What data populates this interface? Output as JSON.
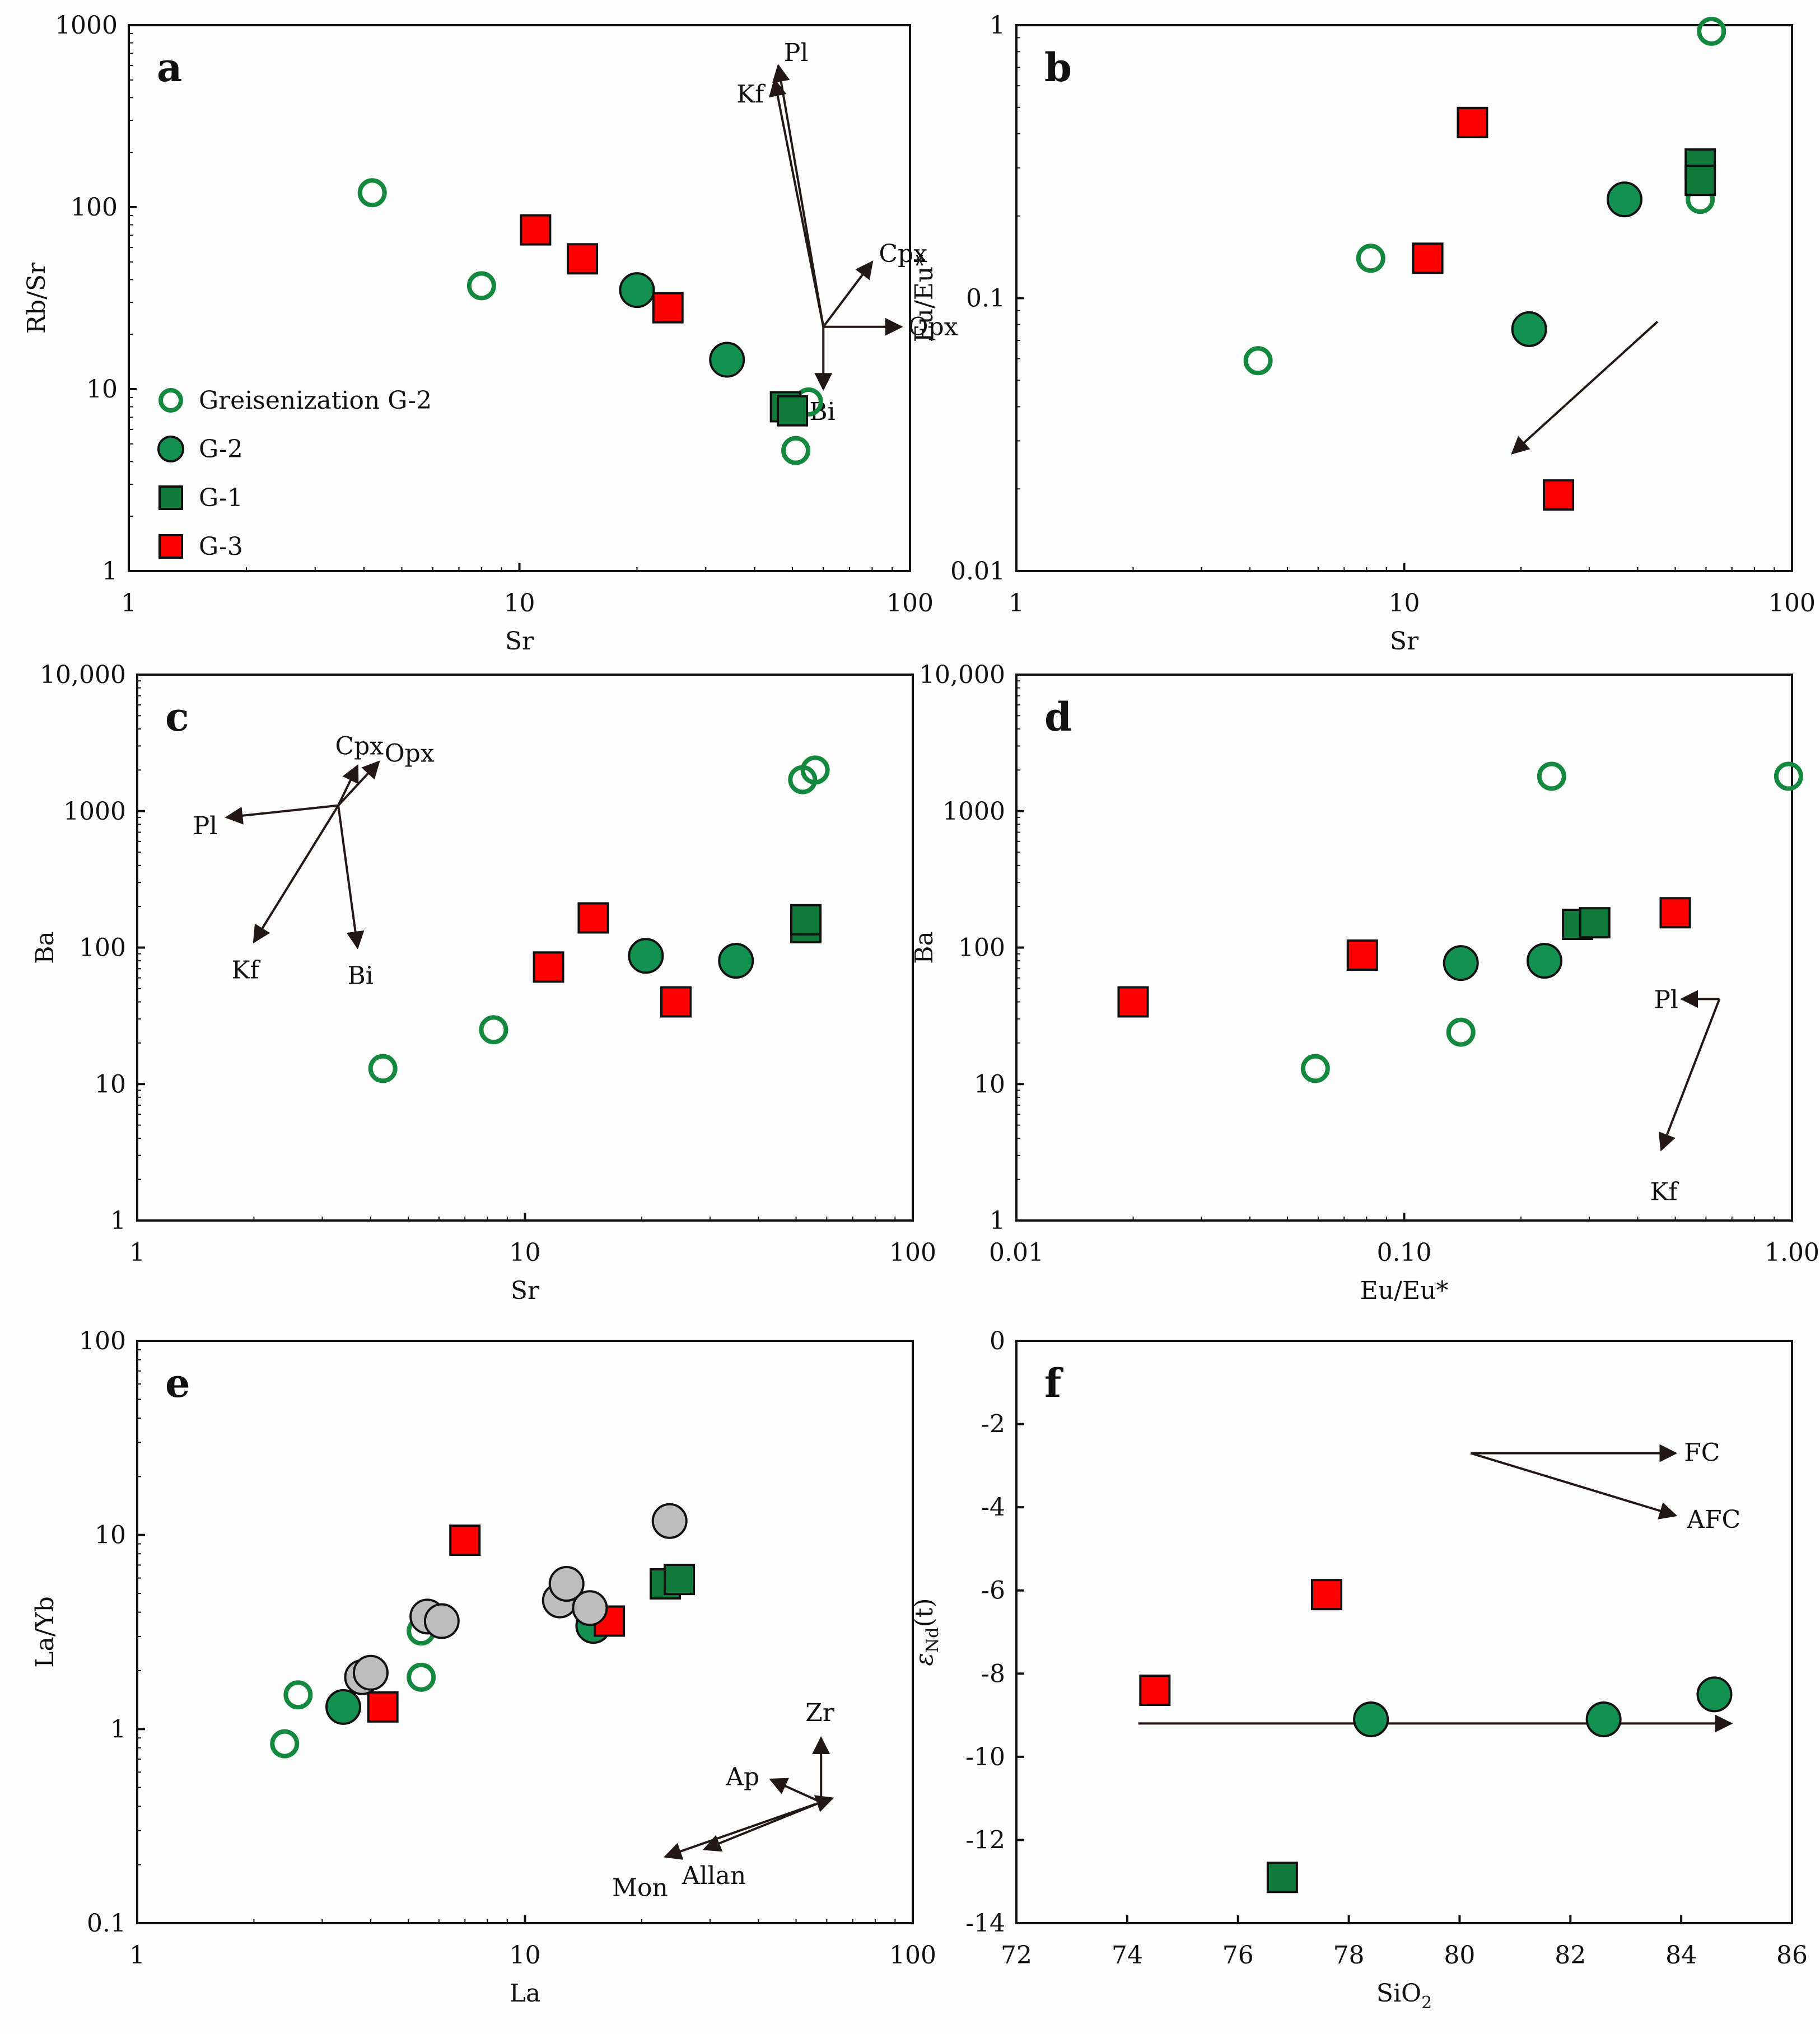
{
  "colors": {
    "g1": "#0f7a3a",
    "g2": "#129150",
    "greisen_stroke": "#15883f",
    "g3": "#ff0000",
    "gray": "#bdbdbd",
    "axis": "#111111",
    "arrow": "#231815"
  },
  "legend": [
    {
      "label": "Greisenization G-2",
      "marker": "open-circle"
    },
    {
      "label": "G-2",
      "marker": "circle-g2"
    },
    {
      "label": "G-1",
      "marker": "square-g1"
    },
    {
      "label": "G-3",
      "marker": "square-g3"
    }
  ],
  "chart_data": [
    {
      "id": "a",
      "type": "scatter",
      "panel_label": "a",
      "xscale": "log",
      "yscale": "log",
      "xlim": [
        1,
        100
      ],
      "ylim": [
        1,
        1000
      ],
      "xticks": [
        {
          "v": 1,
          "t": "1"
        },
        {
          "v": 10,
          "t": "10"
        },
        {
          "v": 100,
          "t": "100"
        }
      ],
      "yticks": [
        {
          "v": 1,
          "t": "1"
        },
        {
          "v": 10,
          "t": "10"
        },
        {
          "v": 100,
          "t": "100"
        },
        {
          "v": 1000,
          "t": "1000"
        }
      ],
      "xlabel": "Sr",
      "ylabel": "Rb/Sr",
      "series": [
        {
          "name": "Greisenization G-2",
          "marker": "open-circle",
          "x": [
            4.2,
            8.0,
            55,
            51
          ],
          "y": [
            120,
            37,
            8.5,
            4.6
          ]
        },
        {
          "name": "G-2",
          "marker": "circle-g2",
          "x": [
            20,
            34
          ],
          "y": [
            35,
            14.5
          ]
        },
        {
          "name": "G-1",
          "marker": "square-g1",
          "x": [
            48,
            50
          ],
          "y": [
            8.0,
            7.6
          ]
        },
        {
          "name": "G-3",
          "marker": "square-g3",
          "x": [
            11,
            14.5,
            24
          ],
          "y": [
            75,
            52,
            28
          ]
        }
      ],
      "vectors": {
        "origin": [
          60,
          22
        ],
        "arrows": [
          {
            "label": "Pl",
            "to": [
              46,
              600
            ]
          },
          {
            "label": "Kf",
            "to": [
              45,
              500
            ]
          },
          {
            "label": "Cpx",
            "to": [
              80,
              50
            ]
          },
          {
            "label": "Opx",
            "to": [
              95,
              22
            ]
          },
          {
            "label": "Bi",
            "to": [
              60,
              10
            ]
          }
        ]
      }
    },
    {
      "id": "b",
      "type": "scatter",
      "panel_label": "b",
      "xscale": "log",
      "yscale": "log",
      "xlim": [
        1,
        100
      ],
      "ylim": [
        0.01,
        1
      ],
      "xticks": [
        {
          "v": 1,
          "t": "1"
        },
        {
          "v": 10,
          "t": "10"
        },
        {
          "v": 100,
          "t": "100"
        }
      ],
      "yticks": [
        {
          "v": 0.01,
          "t": "0.01"
        },
        {
          "v": 0.1,
          "t": "0.1"
        },
        {
          "v": 1,
          "t": "1"
        }
      ],
      "xlabel": "Sr",
      "ylabel": "Eu/Eu*",
      "series": [
        {
          "name": "Greisenization G-2",
          "marker": "open-circle",
          "x": [
            62,
            58,
            8.2,
            4.2
          ],
          "y": [
            0.95,
            0.23,
            0.14,
            0.059
          ]
        },
        {
          "name": "G-2",
          "marker": "circle-g2",
          "x": [
            37,
            21
          ],
          "y": [
            0.23,
            0.077
          ]
        },
        {
          "name": "G-1",
          "marker": "square-g1",
          "x": [
            58,
            58
          ],
          "y": [
            0.31,
            0.27
          ]
        },
        {
          "name": "G-3",
          "marker": "square-g3",
          "x": [
            15,
            11.5,
            25
          ],
          "y": [
            0.44,
            0.14,
            0.019
          ]
        }
      ],
      "vectors": {
        "origin": [
          45,
          0.082
        ],
        "arrows": [
          {
            "label": "",
            "to": [
              19,
              0.027
            ]
          }
        ]
      }
    },
    {
      "id": "c",
      "type": "scatter",
      "panel_label": "c",
      "xscale": "log",
      "yscale": "log",
      "xlim": [
        1,
        100
      ],
      "ylim": [
        1,
        10000
      ],
      "xticks": [
        {
          "v": 1,
          "t": "1"
        },
        {
          "v": 10,
          "t": "10"
        },
        {
          "v": 100,
          "t": "100"
        }
      ],
      "yticks": [
        {
          "v": 1,
          "t": "1"
        },
        {
          "v": 10,
          "t": "10"
        },
        {
          "v": 100,
          "t": "100"
        },
        {
          "v": 1000,
          "t": "1000"
        },
        {
          "v": 10000,
          "t": "10,000"
        }
      ],
      "xlabel": "Sr",
      "ylabel": "Ba",
      "series": [
        {
          "name": "Greisenization G-2",
          "marker": "open-circle",
          "x": [
            52,
            56,
            8.3,
            4.3
          ],
          "y": [
            1700,
            2000,
            25,
            13
          ]
        },
        {
          "name": "G-2",
          "marker": "circle-g2",
          "x": [
            20.5,
            35
          ],
          "y": [
            87,
            80
          ]
        },
        {
          "name": "G-1",
          "marker": "square-g1",
          "x": [
            53,
            53
          ],
          "y": [
            140,
            160
          ]
        },
        {
          "name": "G-3",
          "marker": "square-g3",
          "x": [
            11.5,
            15,
            24.5
          ],
          "y": [
            72,
            165,
            40
          ]
        }
      ],
      "vectors": {
        "origin": [
          3.3,
          1100
        ],
        "arrows": [
          {
            "label": "Cpx",
            "to": [
              3.7,
              2150
            ]
          },
          {
            "label": "Opx",
            "to": [
              4.2,
              2300
            ]
          },
          {
            "label": "Pl",
            "to": [
              1.7,
              900
            ]
          },
          {
            "label": "Kf",
            "to": [
              2.0,
              110
            ]
          },
          {
            "label": "Bi",
            "to": [
              3.7,
              100
            ]
          }
        ]
      }
    },
    {
      "id": "d",
      "type": "scatter",
      "panel_label": "d",
      "xscale": "log",
      "yscale": "log",
      "xlim": [
        0.01,
        1
      ],
      "ylim": [
        1,
        10000
      ],
      "xticks": [
        {
          "v": 0.01,
          "t": "0.01"
        },
        {
          "v": 0.1,
          "t": "0.10"
        },
        {
          "v": 1,
          "t": "1.00"
        }
      ],
      "yticks": [
        {
          "v": 1,
          "t": "1"
        },
        {
          "v": 10,
          "t": "10"
        },
        {
          "v": 100,
          "t": "100"
        },
        {
          "v": 1000,
          "t": "1000"
        },
        {
          "v": 10000,
          "t": "10,000"
        }
      ],
      "xlabel": "Eu/Eu*",
      "ylabel": "Ba",
      "series": [
        {
          "name": "Greisenization G-2",
          "marker": "open-circle",
          "x": [
            0.24,
            0.98,
            0.14,
            0.059
          ],
          "y": [
            1800,
            1800,
            24,
            13
          ]
        },
        {
          "name": "G-2",
          "marker": "circle-g2",
          "x": [
            0.14,
            0.23
          ],
          "y": [
            77,
            80
          ]
        },
        {
          "name": "G-1",
          "marker": "square-g1",
          "x": [
            0.28,
            0.31
          ],
          "y": [
            148,
            152
          ]
        },
        {
          "name": "G-3",
          "marker": "square-g3",
          "x": [
            0.02,
            0.078,
            0.5
          ],
          "y": [
            40,
            88,
            180
          ]
        }
      ],
      "vectors": {
        "origin": [
          0.65,
          42
        ],
        "arrows": [
          {
            "label": "Pl",
            "to": [
              0.52,
              42
            ]
          },
          {
            "label": "Kf",
            "to": [
              0.46,
              3.3
            ]
          }
        ]
      }
    },
    {
      "id": "e",
      "type": "scatter",
      "panel_label": "e",
      "xscale": "log",
      "yscale": "log",
      "xlim": [
        1,
        100
      ],
      "ylim": [
        0.1,
        100
      ],
      "xticks": [
        {
          "v": 1,
          "t": "1"
        },
        {
          "v": 10,
          "t": "10"
        },
        {
          "v": 100,
          "t": "100"
        }
      ],
      "yticks": [
        {
          "v": 0.1,
          "t": "0.1"
        },
        {
          "v": 1,
          "t": "1"
        },
        {
          "v": 10,
          "t": "10"
        },
        {
          "v": 100,
          "t": "100"
        }
      ],
      "xlabel": "La",
      "ylabel": "La/Yb",
      "series": [
        {
          "name": "Greisenization G-2",
          "marker": "open-circle",
          "x": [
            2.4,
            2.6,
            5.4,
            5.4
          ],
          "y": [
            0.84,
            1.5,
            1.85,
            3.2
          ]
        },
        {
          "name": "G-2",
          "marker": "circle-g2",
          "x": [
            3.4,
            15
          ],
          "y": [
            1.3,
            3.4
          ]
        },
        {
          "name": "G-1",
          "marker": "square-g1",
          "x": [
            23,
            25
          ],
          "y": [
            5.6,
            5.9
          ]
        },
        {
          "name": "G-3",
          "marker": "square-g3",
          "x": [
            7,
            4.3,
            16.5
          ],
          "y": [
            9.4,
            1.3,
            3.6
          ]
        },
        {
          "name": "other",
          "marker": "gray-circle",
          "x": [
            3.8,
            4.0,
            5.6,
            6.1,
            12.3,
            12.8,
            14.7,
            23.6
          ],
          "y": [
            1.85,
            1.95,
            3.8,
            3.6,
            4.6,
            5.6,
            4.2,
            11.8
          ]
        }
      ],
      "vectors": {
        "origin": [
          58,
          0.42
        ],
        "arrows": [
          {
            "label": "Zr",
            "to": [
              58,
              0.9
            ]
          },
          {
            "label": "Ap",
            "to": [
              43,
              0.55
            ]
          },
          {
            "label": "Mon",
            "to": [
              23,
              0.22
            ]
          },
          {
            "label": "Allan",
            "to": [
              29,
              0.24
            ]
          },
          {
            "label": "",
            "to": [
              62,
              0.44
            ]
          }
        ]
      }
    },
    {
      "id": "f",
      "type": "scatter",
      "panel_label": "f",
      "xscale": "linear",
      "yscale": "linear",
      "xlim": [
        72,
        86
      ],
      "ylim": [
        -14,
        0
      ],
      "xticks": [
        {
          "v": 72,
          "t": "72"
        },
        {
          "v": 74,
          "t": "74"
        },
        {
          "v": 76,
          "t": "76"
        },
        {
          "v": 78,
          "t": "78"
        },
        {
          "v": 80,
          "t": "80"
        },
        {
          "v": 82,
          "t": "82"
        },
        {
          "v": 84,
          "t": "84"
        },
        {
          "v": 86,
          "t": "86"
        }
      ],
      "yticks": [
        {
          "v": 0,
          "t": "0"
        },
        {
          "v": -2,
          "t": "-2"
        },
        {
          "v": -4,
          "t": "-4"
        },
        {
          "v": -6,
          "t": "-6"
        },
        {
          "v": -8,
          "t": "-8"
        },
        {
          "v": -10,
          "t": "-10"
        },
        {
          "v": -12,
          "t": "-12"
        },
        {
          "v": -14,
          "t": "-14"
        }
      ],
      "xlabel": "SiO2",
      "ylabel": "εNd(t)",
      "series": [
        {
          "name": "G-2",
          "marker": "circle-g2",
          "x": [
            78.4,
            82.6,
            84.6
          ],
          "y": [
            -9.1,
            -9.1,
            -8.5
          ]
        },
        {
          "name": "G-1",
          "marker": "square-g1",
          "x": [
            76.8
          ],
          "y": [
            -12.9
          ]
        },
        {
          "name": "G-3",
          "marker": "square-g3",
          "x": [
            74.5,
            77.6
          ],
          "y": [
            -8.4,
            -6.1
          ]
        }
      ],
      "vectors": {
        "origin": [
          74.2,
          -9.2
        ],
        "arrows": [
          {
            "label": "",
            "to": [
              84.9,
              -9.2
            ]
          }
        ],
        "fc": {
          "origin": [
            80.2,
            -2.7
          ],
          "arrows": [
            {
              "label": "FC",
              "to": [
                83.9,
                -2.7
              ]
            },
            {
              "label": "AFC",
              "to": [
                83.9,
                -4.2
              ]
            }
          ]
        }
      }
    }
  ]
}
